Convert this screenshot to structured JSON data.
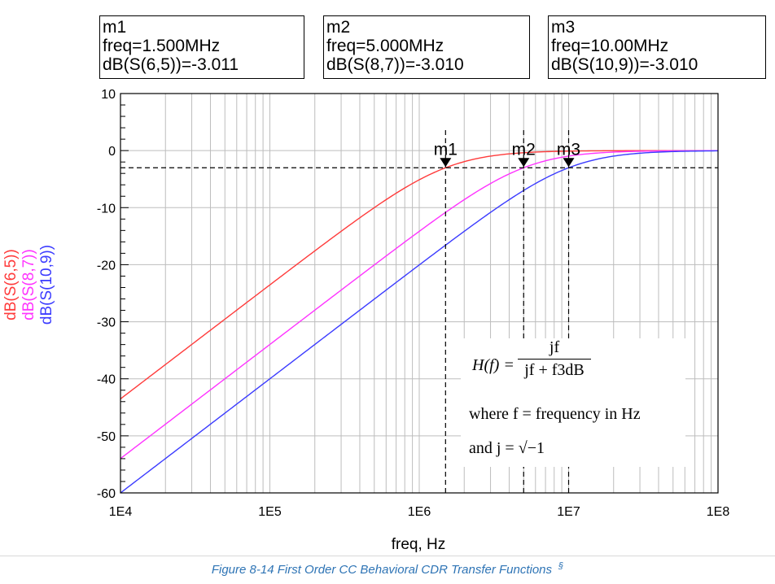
{
  "markers": [
    {
      "name": "m1",
      "freq_label": "freq=1.500MHz",
      "value_label": "dB(S(6,5))=-3.011",
      "freq": 1500000,
      "db": -3.011
    },
    {
      "name": "m2",
      "freq_label": "freq=5.000MHz",
      "value_label": "dB(S(8,7))=-3.010",
      "freq": 5000000,
      "db": -3.01
    },
    {
      "name": "m3",
      "freq_label": "freq=10.00MHz",
      "value_label": "dB(S(10,9))=-3.010",
      "freq": 10000000,
      "db": -3.01
    }
  ],
  "formula": {
    "lhs": "H(f) =",
    "numerator": "jf",
    "denominator": "jf + f3dB",
    "where": "where  f = frequency in Hz",
    "and": "and  j = √−1"
  },
  "caption": {
    "text": "Figure 8-14 First Order CC Behavioral CDR Transfer Functions",
    "symbol": "§"
  },
  "chart_data": {
    "type": "line",
    "xscale": "log",
    "xlim": [
      10000,
      100000000
    ],
    "ylim": [
      -60,
      10
    ],
    "xlabel": "freq, Hz",
    "xticks": [
      {
        "value": 10000,
        "label": "1E4"
      },
      {
        "value": 100000,
        "label": "1E5"
      },
      {
        "value": 1000000,
        "label": "1E6"
      },
      {
        "value": 10000000,
        "label": "1E7"
      },
      {
        "value": 100000000,
        "label": "1E8"
      }
    ],
    "yticks": [
      {
        "value": 10,
        "label": "10"
      },
      {
        "value": 0,
        "label": "0"
      },
      {
        "value": -10,
        "label": "-10"
      },
      {
        "value": -20,
        "label": "-20"
      },
      {
        "value": -30,
        "label": "-30"
      },
      {
        "value": -40,
        "label": "-40"
      },
      {
        "value": -50,
        "label": "-50"
      },
      {
        "value": -60,
        "label": "-60"
      }
    ],
    "grid": true,
    "reference_level_db": -3.01,
    "series": [
      {
        "name": "dB(S(6,5))",
        "color": "#ff3b3b",
        "f3db": 1500000,
        "x": [
          10000,
          20000,
          50000,
          100000,
          200000,
          500000,
          1000000,
          1500000,
          2000000,
          5000000,
          10000000,
          20000000,
          50000000,
          100000000
        ],
        "y": [
          -43.5,
          -37.5,
          -29.6,
          -23.5,
          -17.6,
          -10.0,
          -5.1,
          -3.0,
          -1.9,
          -0.4,
          -0.1,
          0.0,
          0.0,
          0.0
        ]
      },
      {
        "name": "dB(S(8,7))",
        "color": "#ff33ff",
        "f3db": 5000000,
        "x": [
          10000,
          20000,
          50000,
          100000,
          200000,
          500000,
          1000000,
          2000000,
          5000000,
          10000000,
          20000000,
          50000000,
          100000000
        ],
        "y": [
          -54.0,
          -48.0,
          -40.0,
          -34.0,
          -28.0,
          -20.0,
          -14.2,
          -8.6,
          -3.0,
          -1.0,
          -0.3,
          0.0,
          0.0
        ]
      },
      {
        "name": "dB(S(10,9))",
        "color": "#3b3bff",
        "f3db": 10000000,
        "x": [
          10000,
          20000,
          50000,
          100000,
          200000,
          500000,
          1000000,
          2000000,
          5000000,
          10000000,
          20000000,
          50000000,
          100000000
        ],
        "y": [
          -60.0,
          -54.0,
          -46.0,
          -40.0,
          -34.0,
          -26.0,
          -20.0,
          -14.2,
          -7.0,
          -3.0,
          -1.0,
          -0.2,
          0.0
        ]
      }
    ]
  }
}
